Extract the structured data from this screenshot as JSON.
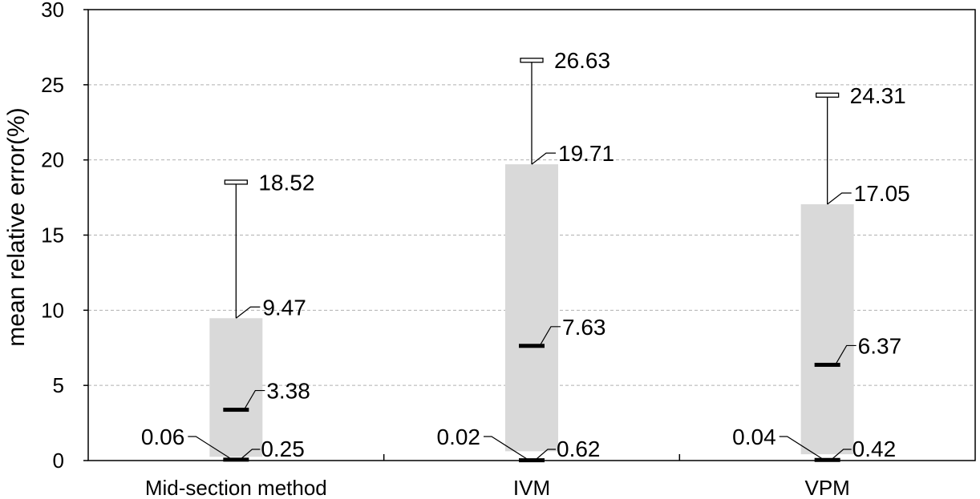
{
  "chart_data": {
    "type": "box",
    "title": "",
    "xlabel": "",
    "ylabel": "mean relative error(%)",
    "ylim": [
      0,
      30
    ],
    "yticks": [
      "0",
      "5",
      "10",
      "15",
      "20",
      "25",
      "30"
    ],
    "grid": "horizontal dashed",
    "box_color": "#d9d9d9",
    "categories": [
      "Mid-section method",
      "IVM",
      "VPM"
    ],
    "boxes": [
      {
        "category": "Mid-section method",
        "min": 0.06,
        "q1": 0.25,
        "median": 3.38,
        "q3": 9.47,
        "max": 18.52,
        "labels": {
          "min": "0.06",
          "q1": "0.25",
          "median": "3.38",
          "q3": "9.47",
          "max": "18.52"
        }
      },
      {
        "category": "IVM",
        "min": 0.02,
        "q1": 0.62,
        "median": 7.63,
        "q3": 19.71,
        "max": 26.63,
        "labels": {
          "min": "0.02",
          "q1": "0.62",
          "median": "7.63",
          "q3": "19.71",
          "max": "26.63"
        }
      },
      {
        "category": "VPM",
        "min": 0.04,
        "q1": 0.42,
        "median": 6.37,
        "q3": 17.05,
        "max": 24.31,
        "labels": {
          "min": "0.04",
          "q1": "0.42",
          "median": "6.37",
          "q3": "17.05",
          "max": "24.31"
        }
      }
    ]
  }
}
